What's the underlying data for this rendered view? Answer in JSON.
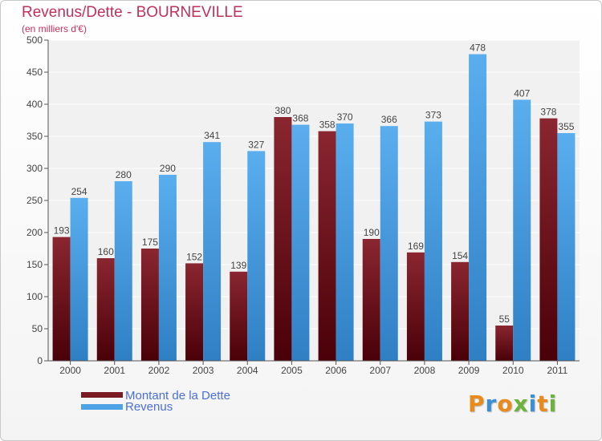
{
  "colors": {
    "dette": "#7a1a22",
    "revenus": "#4da3e6",
    "title": "#c0305a",
    "legend_text": "#4a6fd8"
  },
  "logo": {
    "letters": [
      "P",
      "r",
      "o",
      "x",
      "i",
      "t",
      "i"
    ]
  },
  "chart_data": {
    "type": "bar",
    "title": "Revenus/Dette - BOURNEVILLE",
    "subtitle": "(en milliers d'€)",
    "xlabel": "",
    "ylabel": "",
    "ylim": [
      0,
      500
    ],
    "yticks": [
      0,
      50,
      100,
      150,
      200,
      250,
      300,
      350,
      400,
      450,
      500
    ],
    "grid": true,
    "legend_position": "bottom-left",
    "categories": [
      "2000",
      "2001",
      "2002",
      "2003",
      "2004",
      "2005",
      "2006",
      "2007",
      "2008",
      "2009",
      "2010",
      "2011"
    ],
    "series": [
      {
        "name": "Montant de la Dette",
        "values": [
          193,
          160,
          175,
          152,
          139,
          380,
          358,
          190,
          169,
          154,
          55,
          378
        ]
      },
      {
        "name": "Revenus",
        "values": [
          254,
          280,
          290,
          341,
          327,
          368,
          370,
          366,
          373,
          478,
          407,
          355
        ]
      }
    ]
  }
}
